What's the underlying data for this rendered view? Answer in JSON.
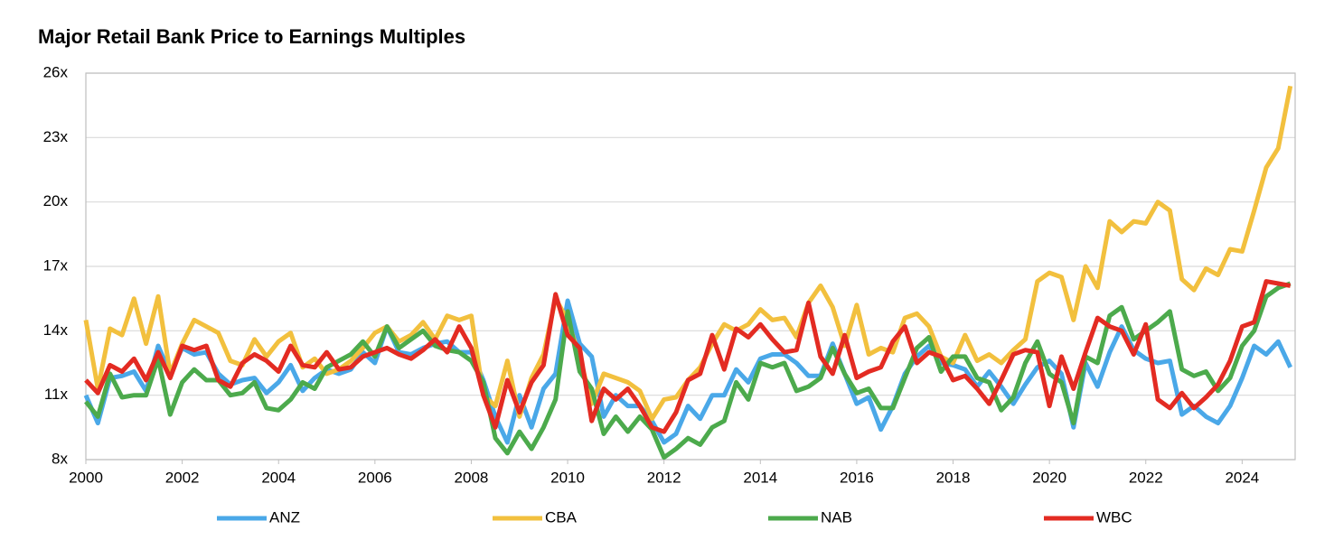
{
  "chart_data": {
    "type": "line",
    "title": "Major Retail Bank Price to Earnings Multiples",
    "x": [
      2000,
      2000.25,
      2000.5,
      2000.75,
      2001,
      2001.25,
      2001.5,
      2001.75,
      2002,
      2002.25,
      2002.5,
      2002.75,
      2003,
      2003.25,
      2003.5,
      2003.75,
      2004,
      2004.25,
      2004.5,
      2004.75,
      2005,
      2005.25,
      2005.5,
      2005.75,
      2006,
      2006.25,
      2006.5,
      2006.75,
      2007,
      2007.25,
      2007.5,
      2007.75,
      2008,
      2008.25,
      2008.5,
      2008.75,
      2009,
      2009.25,
      2009.5,
      2009.75,
      2010,
      2010.25,
      2010.5,
      2010.75,
      2011,
      2011.25,
      2011.5,
      2011.75,
      2012,
      2012.25,
      2012.5,
      2012.75,
      2013,
      2013.25,
      2013.5,
      2013.75,
      2014,
      2014.25,
      2014.5,
      2014.75,
      2015,
      2015.25,
      2015.5,
      2015.75,
      2016,
      2016.25,
      2016.5,
      2016.75,
      2017,
      2017.25,
      2017.5,
      2017.75,
      2018,
      2018.25,
      2018.5,
      2018.75,
      2019,
      2019.25,
      2019.5,
      2019.75,
      2020,
      2020.25,
      2020.5,
      2020.75,
      2021,
      2021.25,
      2021.5,
      2021.75,
      2022,
      2022.25,
      2022.5,
      2022.75,
      2023,
      2023.25,
      2023.5,
      2023.75,
      2024,
      2024.25,
      2024.5,
      2024.75,
      2025
    ],
    "series": [
      {
        "name": "ANZ",
        "color": "#4aa8e8",
        "values": [
          11.0,
          9.7,
          11.8,
          11.9,
          12.1,
          11.2,
          13.3,
          12.0,
          13.2,
          12.9,
          13.0,
          12.0,
          11.5,
          11.7,
          11.8,
          11.1,
          11.6,
          12.4,
          11.2,
          11.8,
          12.2,
          12.0,
          12.2,
          13.0,
          12.5,
          14.2,
          13.0,
          12.9,
          13.2,
          13.4,
          13.5,
          13.0,
          13.0,
          11.7,
          10.0,
          8.8,
          11.0,
          9.5,
          11.3,
          12.0,
          15.4,
          13.4,
          12.8,
          10.0,
          11.0,
          10.5,
          10.5,
          9.8,
          8.8,
          9.2,
          10.5,
          9.9,
          11.0,
          11.0,
          12.2,
          11.6,
          12.7,
          12.9,
          12.9,
          12.5,
          11.9,
          11.9,
          13.4,
          12.0,
          10.6,
          10.9,
          9.4,
          10.5,
          12.0,
          12.8,
          13.3,
          12.5,
          12.4,
          12.2,
          11.4,
          12.1,
          11.4,
          10.6,
          11.5,
          12.3,
          12.6,
          12.0,
          9.5,
          12.5,
          11.4,
          13.0,
          14.2,
          13.1,
          12.7,
          12.5,
          12.6,
          10.1,
          10.5,
          10.0,
          9.7,
          10.5,
          11.8,
          13.3,
          12.9,
          13.5,
          12.3
        ]
      },
      {
        "name": "CBA",
        "color": "#f2c03e",
        "values": [
          14.5,
          11.3,
          14.1,
          13.8,
          15.5,
          13.4,
          15.6,
          12.0,
          13.4,
          14.5,
          14.2,
          13.9,
          12.6,
          12.4,
          13.6,
          12.8,
          13.5,
          13.9,
          12.3,
          12.7,
          12.0,
          12.2,
          12.6,
          13.2,
          13.9,
          14.2,
          13.5,
          13.8,
          14.4,
          13.6,
          14.7,
          14.5,
          14.7,
          11.0,
          10.5,
          12.6,
          10.0,
          11.8,
          12.9,
          15.5,
          14.5,
          12.8,
          10.6,
          12.0,
          11.8,
          11.6,
          11.2,
          9.9,
          10.8,
          10.9,
          11.7,
          12.3,
          13.4,
          14.3,
          14.0,
          14.3,
          15.0,
          14.5,
          14.6,
          13.7,
          15.3,
          16.1,
          15.1,
          13.3,
          15.2,
          12.9,
          13.2,
          13.0,
          14.6,
          14.8,
          14.2,
          12.8,
          12.5,
          13.8,
          12.6,
          12.9,
          12.5,
          13.1,
          13.6,
          16.3,
          16.7,
          16.5,
          14.5,
          17.0,
          16.0,
          19.1,
          18.6,
          19.1,
          19.0,
          20.0,
          19.6,
          16.4,
          15.9,
          16.9,
          16.6,
          17.8,
          17.7,
          19.6,
          21.6,
          22.5,
          25.4
        ]
      },
      {
        "name": "NAB",
        "color": "#4caa4c",
        "values": [
          10.7,
          10.0,
          12.0,
          10.9,
          11.0,
          11.0,
          12.7,
          10.1,
          11.6,
          12.2,
          11.7,
          11.7,
          11.0,
          11.1,
          11.6,
          10.4,
          10.3,
          10.8,
          11.6,
          11.3,
          12.3,
          12.6,
          12.9,
          13.5,
          12.8,
          14.2,
          13.2,
          13.6,
          14.0,
          13.3,
          13.1,
          13.0,
          12.6,
          11.6,
          9.0,
          8.3,
          9.3,
          8.5,
          9.5,
          10.8,
          14.9,
          12.1,
          11.3,
          9.2,
          10.0,
          9.3,
          10.0,
          9.4,
          8.1,
          8.5,
          9.0,
          8.7,
          9.5,
          9.8,
          11.6,
          10.8,
          12.5,
          12.3,
          12.5,
          11.2,
          11.4,
          11.8,
          13.2,
          12.0,
          11.1,
          11.3,
          10.4,
          10.4,
          11.8,
          13.2,
          13.7,
          12.1,
          12.8,
          12.8,
          11.8,
          11.6,
          10.3,
          10.9,
          12.5,
          13.5,
          12.0,
          11.6,
          9.7,
          12.8,
          12.5,
          14.7,
          15.1,
          13.6,
          14.0,
          14.4,
          14.9,
          12.2,
          11.9,
          12.1,
          11.2,
          11.8,
          13.3,
          14.0,
          15.6,
          16.0,
          16.2
        ]
      },
      {
        "name": "WBC",
        "color": "#e32b22",
        "values": [
          11.7,
          11.1,
          12.4,
          12.1,
          12.7,
          11.7,
          13.0,
          11.8,
          13.3,
          13.1,
          13.3,
          11.7,
          11.4,
          12.5,
          12.9,
          12.6,
          12.1,
          13.3,
          12.4,
          12.3,
          13.0,
          12.2,
          12.3,
          12.8,
          13.0,
          13.2,
          12.9,
          12.7,
          13.1,
          13.6,
          13.0,
          14.2,
          13.2,
          11.0,
          9.5,
          11.7,
          10.2,
          11.6,
          12.4,
          15.7,
          13.8,
          13.2,
          9.8,
          11.3,
          10.8,
          11.3,
          10.5,
          9.5,
          9.3,
          10.2,
          11.7,
          12.0,
          13.8,
          12.2,
          14.1,
          13.7,
          14.3,
          13.6,
          13.0,
          13.1,
          15.3,
          12.8,
          12.0,
          13.8,
          11.8,
          12.1,
          12.3,
          13.5,
          14.2,
          12.5,
          13.0,
          12.8,
          11.7,
          11.9,
          11.3,
          10.6,
          11.7,
          12.9,
          13.1,
          13.0,
          10.5,
          12.8,
          11.3,
          13.0,
          14.6,
          14.2,
          14.0,
          12.9,
          14.3,
          10.8,
          10.4,
          11.1,
          10.4,
          10.9,
          11.5,
          12.6,
          14.2,
          14.4,
          16.3,
          16.2,
          16.1
        ]
      }
    ],
    "xlim": [
      2000,
      2025.1
    ],
    "ylim": [
      8,
      26
    ],
    "xticks": [
      2000,
      2002,
      2004,
      2006,
      2008,
      2010,
      2012,
      2014,
      2016,
      2018,
      2020,
      2022,
      2024
    ],
    "yticks": [
      {
        "value": 8,
        "label": "8x"
      },
      {
        "value": 11,
        "label": "11x"
      },
      {
        "value": 14,
        "label": "14x"
      },
      {
        "value": 17,
        "label": "17x"
      },
      {
        "value": 20,
        "label": "20x"
      },
      {
        "value": 23,
        "label": "23x"
      },
      {
        "value": 26,
        "label": "26x"
      }
    ],
    "grid": true,
    "legend": "bottom"
  }
}
